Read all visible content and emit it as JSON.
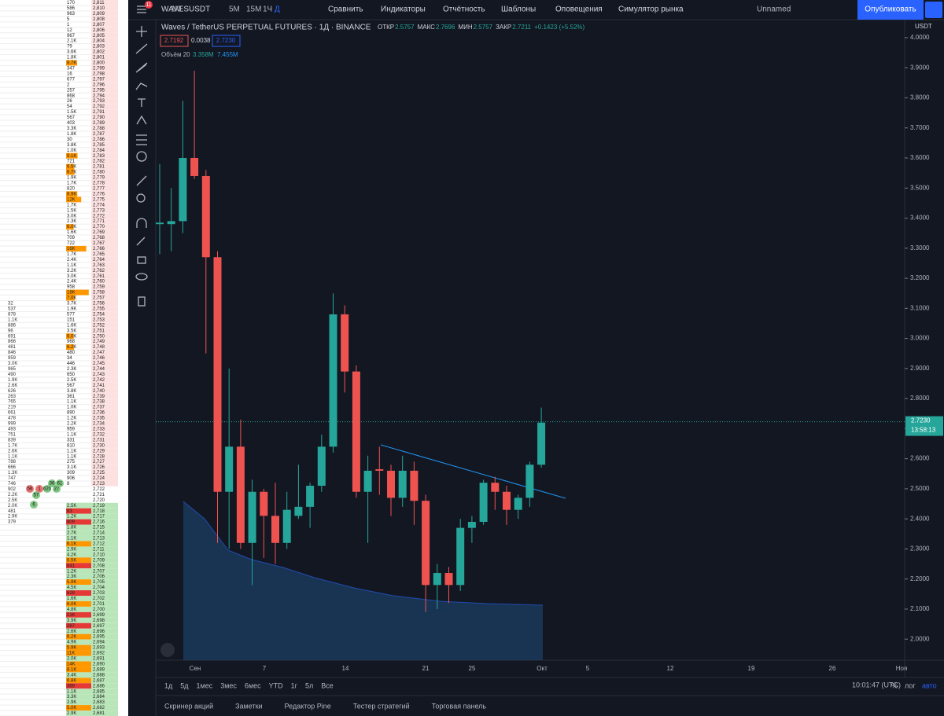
{
  "orderbook": {
    "prices": [
      "2,811",
      "2,810",
      "2,809",
      "2,808",
      "2,807",
      "2,806",
      "2,805",
      "2,804",
      "2,803",
      "2,802",
      "2,801",
      "2,800",
      "2,799",
      "2,798",
      "2,797",
      "2,796",
      "2,795",
      "2,794",
      "2,793",
      "2,792",
      "2,791",
      "2,790",
      "2,789",
      "2,788",
      "2,787",
      "2,786",
      "2,785",
      "2,784",
      "2,783",
      "2,782",
      "2,781",
      "2,780",
      "2,779",
      "2,778",
      "2,777",
      "2,776",
      "2,775",
      "2,774",
      "2,773",
      "2,772",
      "2,771",
      "2,770",
      "2,769",
      "2,768",
      "2,767",
      "2,766",
      "2,765",
      "2,764",
      "2,763",
      "2,762",
      "2,761",
      "2,760",
      "2,759",
      "2,758",
      "2,757",
      "2,756",
      "2,755",
      "2,754",
      "2,753",
      "2,752",
      "2,751",
      "2,750",
      "2,749",
      "2,748",
      "2,747",
      "2,746",
      "2,745",
      "2,744",
      "2,743",
      "2,742",
      "2,741",
      "2,740",
      "2,739",
      "2,738",
      "2,737",
      "2,736",
      "2,735",
      "2,734",
      "2,733",
      "2,732",
      "2,731",
      "2,730",
      "2,729",
      "2,728",
      "2,727",
      "2,726",
      "2,725",
      "2,724",
      "2,723",
      "2,722",
      "2,721",
      "2,720",
      "2,719",
      "2,718",
      "2,717",
      "2,716",
      "2,715",
      "2,714",
      "2,713",
      "2,712",
      "2,711",
      "2,710",
      "2,709",
      "2,708",
      "2,707",
      "2,706",
      "2,705",
      "2,704",
      "2,703",
      "2,702",
      "2,701",
      "2,700",
      "2,699",
      "2,698",
      "2,697",
      "2,696",
      "2,695",
      "2,694",
      "2,693",
      "2,692",
      "2,691",
      "2,690",
      "2,689",
      "2,688",
      "2,687",
      "2,686",
      "2,685",
      "2,684",
      "2,683",
      "2,682",
      "2,681"
    ],
    "ask_volumes": [
      "170",
      "586",
      "963",
      "5",
      "1",
      "12",
      "967",
      "2.1K",
      "79",
      "3.6K",
      "1.8K",
      "8.7K",
      "347",
      "16",
      "677",
      "2",
      "257",
      "868",
      "26",
      "54",
      "1.5K",
      "567",
      "403",
      "3.3K",
      "1.8K",
      "30",
      "3.8K",
      "1.0K",
      "9.1K",
      "721",
      "6.5K",
      "6.7K",
      "1.9K",
      "1.7K",
      "820",
      "8.9K",
      "12K",
      "1.7K",
      "1.5K",
      "3.0K",
      "2.3K",
      "6.0K",
      "1.6K",
      "709",
      "722",
      "16K",
      "1.7K",
      "2.4K",
      "1.1K",
      "3.2K",
      "3.0K",
      "2.4K",
      "958",
      "18K",
      "7.0K",
      "3.7K",
      "1.9K",
      "577",
      "151",
      "1.6K",
      "3.5K",
      "6.0K",
      "968",
      "6.2K",
      "480",
      "34",
      "446",
      "2.3K",
      "650",
      "2.5K",
      "567",
      "3.8K",
      "361",
      "1.1K",
      "1.0K",
      "890",
      "1.2K",
      "2.2K",
      "959",
      "1.1K",
      "331",
      "810",
      "1.1K",
      "1.1K",
      "275",
      "3.1K",
      "309",
      "906",
      "8"
    ],
    "bid_volumes": [
      "2.5K",
      "83",
      "1.2K",
      "809",
      "1.8K",
      "2.7K",
      "1.1K",
      "6.1K",
      "2.9K",
      "4.2K",
      "6.5K",
      "641",
      "1.2K",
      "2.3K",
      "5.9K",
      "4.5K",
      "628",
      "1.6K",
      "6.0K",
      "4.8K",
      "21K",
      "3.9K",
      "387",
      "2.6K",
      "6.2K",
      "4.9K",
      "5.9K",
      "11K",
      "2.0K",
      "14K",
      "8.1K",
      "3.4K",
      "6.8K",
      "369",
      "1.1K",
      "3.3K",
      "2.9K",
      "5.0K",
      "2.9K"
    ],
    "trades": [
      "32",
      "537",
      "878",
      "1.1K",
      "886",
      "96",
      "691",
      "866",
      "481",
      "846",
      "959",
      "3.0K",
      "965",
      "490",
      "1.9K",
      "2.6K",
      "626",
      "263",
      "765",
      "219",
      "661",
      "478",
      "999",
      "493",
      "751",
      "839",
      "1.7K",
      "2.6K",
      "1.1K",
      "788",
      "666",
      "1.3K",
      "747",
      "746",
      "902",
      "2.2K",
      "2.5K",
      "2.0K",
      "481",
      "2.9K",
      "379"
    ],
    "bubbles": [
      "56",
      "1",
      "57",
      "620",
      "27",
      "36",
      "61",
      "6"
    ]
  },
  "toolbar": {
    "symbol": "WAVESUSDT",
    "intervals": [
      "1М",
      "5М",
      "15М",
      "1Ч",
      "Д"
    ],
    "buttons": [
      "Сравнить",
      "Индикаторы",
      "Отчётность",
      "Шаблоны",
      "Оповещения",
      "Симулятор рынка"
    ],
    "layout": "Unnamed",
    "publish": "Опубликовать",
    "badge": "11"
  },
  "legend": {
    "title": "Waves / TetherUS PERPETUAL FUTURES · 1Д · BINANCE",
    "ohlc": [
      {
        "label": "ОТКР",
        "value": "2.5757"
      },
      {
        "label": "МАКС",
        "value": "2.7696"
      },
      {
        "label": "МИН",
        "value": "2.5757"
      },
      {
        "label": "ЗАКР",
        "value": "2.7211"
      }
    ],
    "change": "+0.1423 (+5.52%)",
    "bid": "2.7192",
    "spread": "0.0038",
    "ask": "2.7230",
    "volume_label": "Объём 20",
    "volume": "3.358M",
    "volume_ma": "7.455M"
  },
  "chart": {
    "currency": "USDT",
    "ylim": [
      1.93,
      4.06
    ],
    "yticks": [
      {
        "value": 4.0,
        "label": "4.0000"
      },
      {
        "value": 3.9,
        "label": "3.9000"
      },
      {
        "value": 3.8,
        "label": "3.8000"
      },
      {
        "value": 3.7,
        "label": "3.7000"
      },
      {
        "value": 3.6,
        "label": "3.6000"
      },
      {
        "value": 3.5,
        "label": "3.5000"
      },
      {
        "value": 3.4,
        "label": "3.4000"
      },
      {
        "value": 3.3,
        "label": "3.3000"
      },
      {
        "value": 3.2,
        "label": "3.2000"
      },
      {
        "value": 3.1,
        "label": "3.1000"
      },
      {
        "value": 3.0,
        "label": "3.0000"
      },
      {
        "value": 2.9,
        "label": "2.9000"
      },
      {
        "value": 2.8,
        "label": "2.8000"
      },
      {
        "value": 2.7,
        "label": "2.7000"
      },
      {
        "value": 2.6,
        "label": "2.6000"
      },
      {
        "value": 2.5,
        "label": "2.5000"
      },
      {
        "value": 2.4,
        "label": "2.4000"
      },
      {
        "value": 2.3,
        "label": "2.3000"
      },
      {
        "value": 2.2,
        "label": "2.2000"
      },
      {
        "value": 2.1,
        "label": "2.1000"
      },
      {
        "value": 2.0,
        "label": "2.0000"
      }
    ],
    "last_price": {
      "value": 2.723,
      "label": "2.7230"
    },
    "countdown": "13:58:13",
    "xlabels": [
      "Сен",
      "7",
      "14",
      "21",
      "25",
      "Окт",
      "5",
      "12",
      "19",
      "26",
      "Ноя"
    ],
    "candles": [
      [
        3.38,
        3.58,
        3.28,
        3.385
      ],
      [
        3.38,
        3.5,
        3.29,
        3.39
      ],
      [
        3.39,
        3.79,
        3.35,
        3.6
      ],
      [
        3.6,
        3.89,
        3.53,
        3.54
      ],
      [
        3.54,
        3.56,
        2.95,
        3.27
      ],
      [
        3.27,
        3.29,
        2.32,
        2.49
      ],
      [
        2.49,
        2.9,
        2.3,
        2.64
      ],
      [
        2.64,
        2.73,
        2.3,
        2.32
      ],
      [
        2.32,
        2.53,
        2.18,
        2.49
      ],
      [
        2.49,
        2.5,
        2.27,
        2.41
      ],
      [
        2.41,
        2.52,
        2.25,
        2.32
      ],
      [
        2.32,
        2.49,
        2.3,
        2.43
      ],
      [
        2.41,
        2.58,
        2.4,
        2.44
      ],
      [
        2.44,
        2.52,
        2.37,
        2.51
      ],
      [
        2.51,
        2.68,
        2.49,
        2.64
      ],
      [
        2.64,
        3.15,
        2.62,
        3.08
      ],
      [
        3.08,
        3.11,
        2.82,
        2.89
      ],
      [
        2.89,
        2.91,
        2.47,
        2.49
      ],
      [
        2.49,
        2.61,
        2.32,
        2.56
      ],
      [
        2.565,
        2.64,
        2.48,
        2.56
      ],
      [
        2.56,
        2.58,
        2.41,
        2.47
      ],
      [
        2.47,
        2.61,
        2.44,
        2.56
      ],
      [
        2.56,
        2.59,
        2.38,
        2.46
      ],
      [
        2.46,
        2.48,
        2.09,
        2.18
      ],
      [
        2.18,
        2.25,
        2.1,
        2.22
      ],
      [
        2.22,
        2.24,
        2.12,
        2.18
      ],
      [
        2.18,
        2.4,
        2.16,
        2.37
      ],
      [
        2.37,
        2.41,
        2.32,
        2.39
      ],
      [
        2.39,
        2.53,
        2.38,
        2.52
      ],
      [
        2.52,
        2.54,
        2.43,
        2.49
      ],
      [
        2.49,
        2.51,
        2.38,
        2.43
      ],
      [
        2.43,
        2.48,
        2.4,
        2.47
      ],
      [
        2.47,
        2.59,
        2.44,
        2.58
      ],
      [
        2.58,
        2.77,
        2.57,
        2.72
      ]
    ]
  },
  "bottom": {
    "ranges": [
      "1д",
      "5д",
      "1мес",
      "3мес",
      "6мес",
      "YTD",
      "1г",
      "5л",
      "Все"
    ],
    "clock": "10:01:47 (UTC)",
    "options": [
      "%",
      "лог",
      "авто"
    ],
    "tabs": [
      "Скринер акций",
      "Заметки",
      "Редактор Pine",
      "Тестер стратегий",
      "Торговая панель"
    ]
  }
}
